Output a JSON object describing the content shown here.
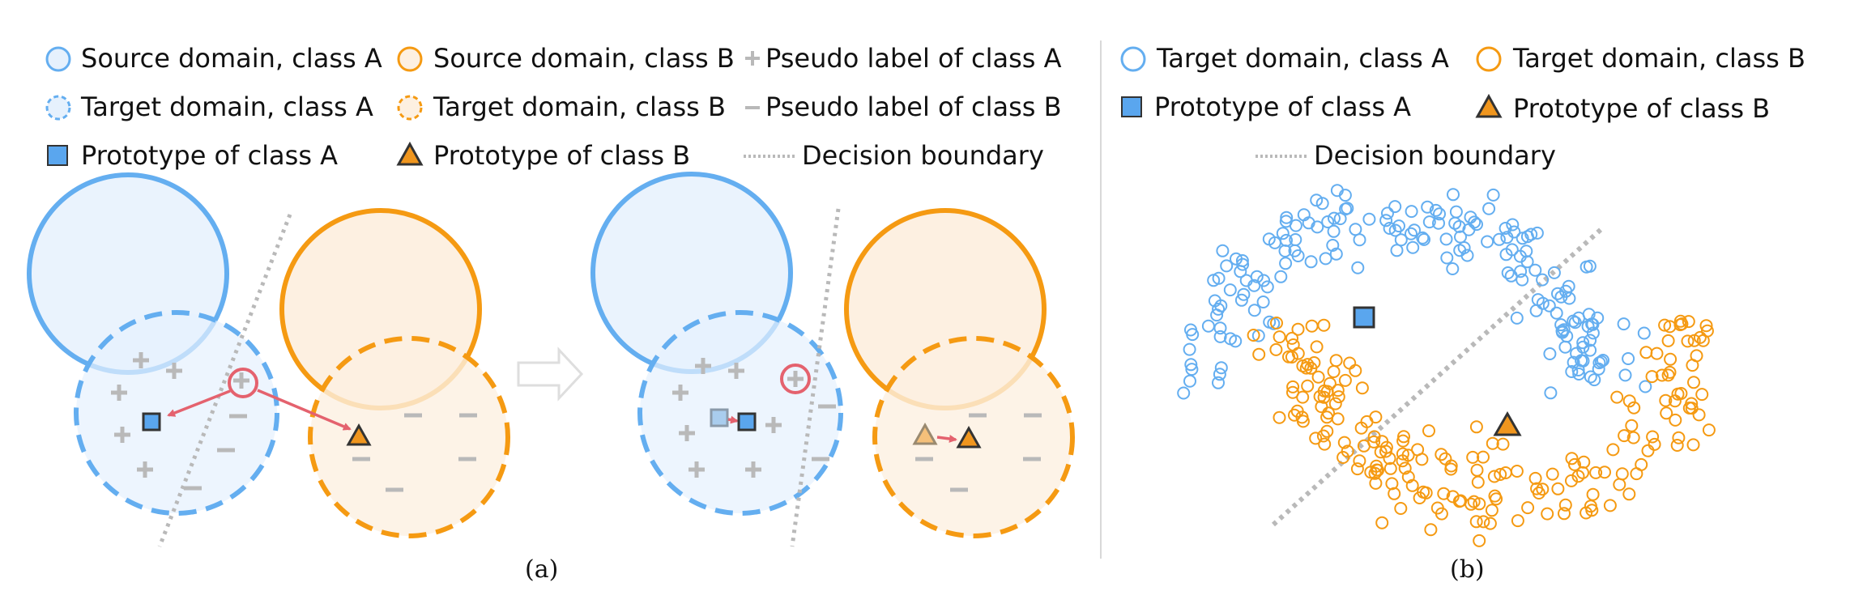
{
  "colors": {
    "blue": "#64aef0",
    "blue_fill": "#e6f1fd",
    "orange": "#f59a12",
    "orange_fill": "#fdf0e1",
    "grey": "#b9b9b9",
    "red": "#e4626e",
    "proto_a": "#5aa6ee",
    "proto_b": "#f0961e"
  },
  "legend_a": {
    "src_a": "Source domain, class A",
    "src_b": "Source domain, class B",
    "pseudo_a": "Pseudo label of class A",
    "tgt_a": "Target domain, class A",
    "tgt_b": "Target domain, class B",
    "pseudo_b": "Pseudo label of class B",
    "proto_a": "Prototype of class A",
    "proto_b": "Prototype of class B",
    "boundary": "Decision boundary"
  },
  "legend_b": {
    "tgt_a": "Target domain, class A",
    "tgt_b": "Target domain, class B",
    "proto_a": "Prototype of class A",
    "proto_b": "Prototype of class B",
    "boundary": "Decision boundary"
  },
  "captions": {
    "a": "(a)",
    "b": "(b)"
  },
  "icons": [
    "circle-icon",
    "dashed-circle-icon",
    "plus-icon",
    "minus-icon",
    "square-icon",
    "triangle-icon",
    "dotted-line-icon",
    "arrow-icon"
  ]
}
